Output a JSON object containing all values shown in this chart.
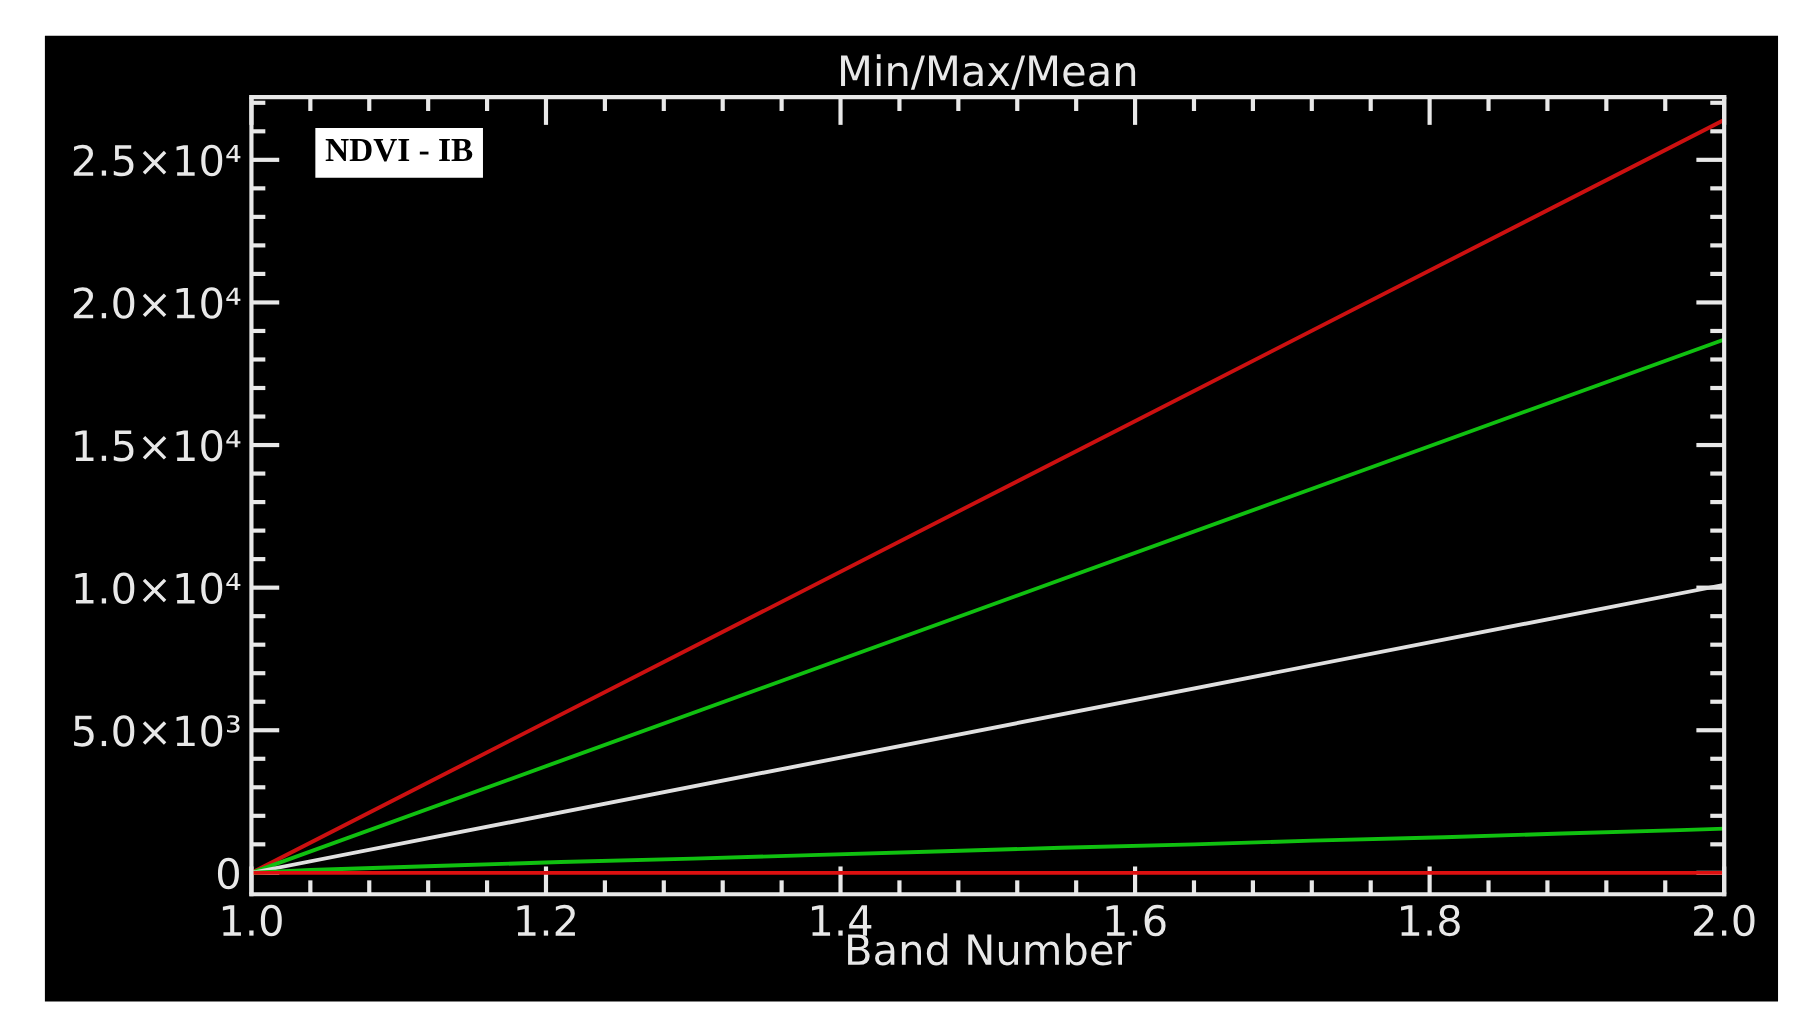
{
  "chart_data": {
    "type": "line",
    "title": "Min/Max/Mean",
    "xlabel": "Band Number",
    "annotations": [
      "NDVI - IB"
    ],
    "x": [
      1.0,
      2.0
    ],
    "series": [
      {
        "color": "#cc1010",
        "values": [
          0,
          26400
        ]
      },
      {
        "color": "#10c010",
        "values": [
          0,
          18700
        ]
      },
      {
        "color": "#e0e0e0",
        "values": [
          0,
          10100
        ]
      },
      {
        "color": "#10c010",
        "x": [
          1.0,
          1.04,
          1.13,
          1.21,
          1.3,
          1.38,
          1.47,
          1.55,
          1.64,
          1.72,
          1.81,
          1.89,
          1.97,
          2.0
        ],
        "values": [
          0,
          100,
          250,
          380,
          500,
          620,
          760,
          880,
          1000,
          1130,
          1250,
          1380,
          1500,
          1550
        ]
      },
      {
        "color": "#dd1010",
        "values": [
          0,
          0
        ]
      }
    ],
    "xlim": [
      1.0,
      2.0
    ],
    "xticks": [
      {
        "value": 1.0,
        "label": "1.0"
      },
      1.2,
      1.4,
      1.6,
      1.8,
      {
        "value": 2.0,
        "label": "2.0"
      }
    ],
    "ylim": [
      -750,
      27200
    ],
    "yticks": [
      {
        "value": 0,
        "label": "0"
      },
      {
        "value": 5000,
        "label": "5.0×10³"
      },
      {
        "value": 10000,
        "label": "1.0×10⁴"
      },
      {
        "value": 15000,
        "label": "1.5×10⁴"
      },
      {
        "value": 20000,
        "label": "2.0×10⁴"
      },
      {
        "value": 25000,
        "label": "2.5×10⁴"
      }
    ],
    "legend": false
  }
}
